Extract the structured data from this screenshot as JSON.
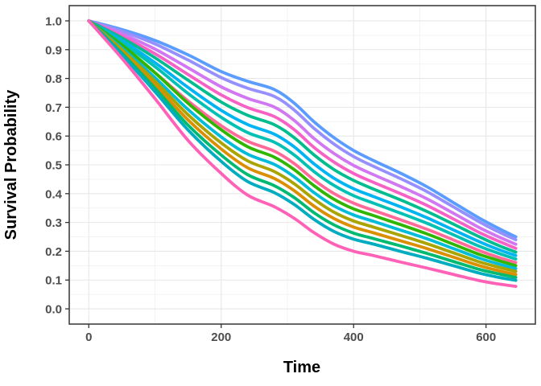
{
  "chart_data": {
    "type": "line",
    "title": "",
    "xlabel": "Time",
    "ylabel": "Survival Probability",
    "xlim": [
      -29.5,
      674.5
    ],
    "ylim": [
      -0.0529,
      1.0529
    ],
    "x_tick_values": [
      0,
      200,
      400,
      600
    ],
    "x_tick_labels": [
      "0",
      "200",
      "400",
      "600"
    ],
    "x_minor_ticks": [
      100,
      300,
      500
    ],
    "y_tick_values": [
      0.0,
      0.1,
      0.2,
      0.3,
      0.4,
      0.5,
      0.6,
      0.7,
      0.8,
      0.9,
      1.0
    ],
    "y_tick_labels": [
      "0.0",
      "0.1",
      "0.2",
      "0.3",
      "0.4",
      "0.5",
      "0.6",
      "0.7",
      "0.8",
      "0.9",
      "1.0"
    ],
    "y_minor_ticks": [
      0.05,
      0.15,
      0.25,
      0.35,
      0.45,
      0.55,
      0.65,
      0.75,
      0.85,
      0.95
    ],
    "grid": true,
    "legend": "none",
    "colors": {
      "panel_background": "#ffffff",
      "panel_border": "#343434",
      "grid_major": "#e7e7e7",
      "grid_minor": "#f3f3f3",
      "tick_mark": "#333333",
      "tick_text": "#4d4d4d",
      "axis_title_text": "#000000"
    },
    "line_width": 3.8,
    "x": [
      0,
      50,
      100,
      150,
      200,
      240,
      280,
      310,
      340,
      370,
      400,
      430,
      470,
      510,
      550,
      590,
      620,
      645
    ],
    "series": [
      {
        "name": "curve-blue",
        "color": "#5b9dff",
        "values": [
          1.0,
          0.97,
          0.932,
          0.882,
          0.824,
          0.79,
          0.762,
          0.715,
          0.65,
          0.595,
          0.55,
          0.515,
          0.472,
          0.425,
          0.37,
          0.315,
          0.278,
          0.25
        ]
      },
      {
        "name": "curve-periwinkle",
        "color": "#9690ff",
        "values": [
          1.0,
          0.964,
          0.92,
          0.864,
          0.803,
          0.766,
          0.738,
          0.691,
          0.627,
          0.573,
          0.529,
          0.495,
          0.453,
          0.408,
          0.355,
          0.302,
          0.266,
          0.24
        ]
      },
      {
        "name": "curve-orchid",
        "color": "#d277f2",
        "values": [
          1.0,
          0.955,
          0.902,
          0.837,
          0.771,
          0.731,
          0.701,
          0.655,
          0.592,
          0.54,
          0.498,
          0.466,
          0.426,
          0.383,
          0.333,
          0.282,
          0.249,
          0.224
        ]
      },
      {
        "name": "curve-magenta",
        "color": "#f561c5",
        "values": [
          1.0,
          0.947,
          0.886,
          0.814,
          0.743,
          0.699,
          0.668,
          0.623,
          0.561,
          0.51,
          0.47,
          0.439,
          0.401,
          0.36,
          0.313,
          0.265,
          0.234,
          0.21
        ]
      },
      {
        "name": "curve-seagreen",
        "color": "#00bd8f",
        "values": [
          1.0,
          0.941,
          0.872,
          0.794,
          0.718,
          0.672,
          0.64,
          0.595,
          0.535,
          0.484,
          0.446,
          0.416,
          0.379,
          0.339,
          0.295,
          0.25,
          0.219,
          0.197
        ]
      },
      {
        "name": "curve-skyblue",
        "color": "#00b3f2",
        "values": [
          1.0,
          0.932,
          0.855,
          0.769,
          0.689,
          0.64,
          0.607,
          0.563,
          0.504,
          0.454,
          0.417,
          0.39,
          0.355,
          0.317,
          0.275,
          0.233,
          0.205,
          0.185
        ]
      },
      {
        "name": "curve-teal",
        "color": "#00c1b3",
        "values": [
          1.0,
          0.925,
          0.841,
          0.748,
          0.665,
          0.612,
          0.579,
          0.535,
          0.477,
          0.429,
          0.393,
          0.367,
          0.333,
          0.298,
          0.258,
          0.217,
          0.192,
          0.173
        ]
      },
      {
        "name": "curve-pink",
        "color": "#ff6a99",
        "values": [
          1.0,
          0.912,
          0.82,
          0.722,
          0.636,
          0.582,
          0.548,
          0.505,
          0.448,
          0.401,
          0.367,
          0.342,
          0.31,
          0.277,
          0.24,
          0.202,
          0.178,
          0.161
        ]
      },
      {
        "name": "curve-green",
        "color": "#31b600",
        "values": [
          1.0,
          0.916,
          0.82,
          0.714,
          0.622,
          0.563,
          0.527,
          0.484,
          0.428,
          0.381,
          0.347,
          0.324,
          0.293,
          0.261,
          0.225,
          0.189,
          0.167,
          0.15
        ]
      },
      {
        "name": "curve-cyan",
        "color": "#00bcd8",
        "values": [
          1.0,
          0.906,
          0.803,
          0.692,
          0.597,
          0.537,
          0.502,
          0.459,
          0.404,
          0.358,
          0.326,
          0.304,
          0.274,
          0.244,
          0.21,
          0.176,
          0.155,
          0.14
        ]
      },
      {
        "name": "curve-olive",
        "color": "#a9a400",
        "values": [
          1.0,
          0.9,
          0.791,
          0.674,
          0.576,
          0.514,
          0.477,
          0.435,
          0.381,
          0.336,
          0.305,
          0.284,
          0.256,
          0.227,
          0.195,
          0.163,
          0.144,
          0.13
        ]
      },
      {
        "name": "curve-orange",
        "color": "#db8e00",
        "values": [
          1.0,
          0.894,
          0.778,
          0.656,
          0.555,
          0.49,
          0.453,
          0.411,
          0.357,
          0.314,
          0.284,
          0.264,
          0.237,
          0.21,
          0.18,
          0.15,
          0.132,
          0.119
        ]
      },
      {
        "name": "curve-green2",
        "color": "#00ba71",
        "values": [
          1.0,
          0.888,
          0.766,
          0.638,
          0.534,
          0.466,
          0.428,
          0.387,
          0.334,
          0.292,
          0.263,
          0.244,
          0.219,
          0.193,
          0.165,
          0.137,
          0.121,
          0.109
        ]
      },
      {
        "name": "curve-teal2",
        "color": "#00acc0",
        "values": [
          1.0,
          0.882,
          0.754,
          0.621,
          0.512,
          0.442,
          0.404,
          0.363,
          0.311,
          0.269,
          0.242,
          0.225,
          0.2,
          0.176,
          0.15,
          0.124,
          0.109,
          0.099
        ]
      },
      {
        "name": "curve-hotpink",
        "color": "#ff61b7",
        "values": [
          1.0,
          0.87,
          0.73,
          0.585,
          0.47,
          0.395,
          0.355,
          0.315,
          0.265,
          0.225,
          0.2,
          0.185,
          0.163,
          0.142,
          0.12,
          0.098,
          0.086,
          0.078
        ]
      }
    ]
  }
}
